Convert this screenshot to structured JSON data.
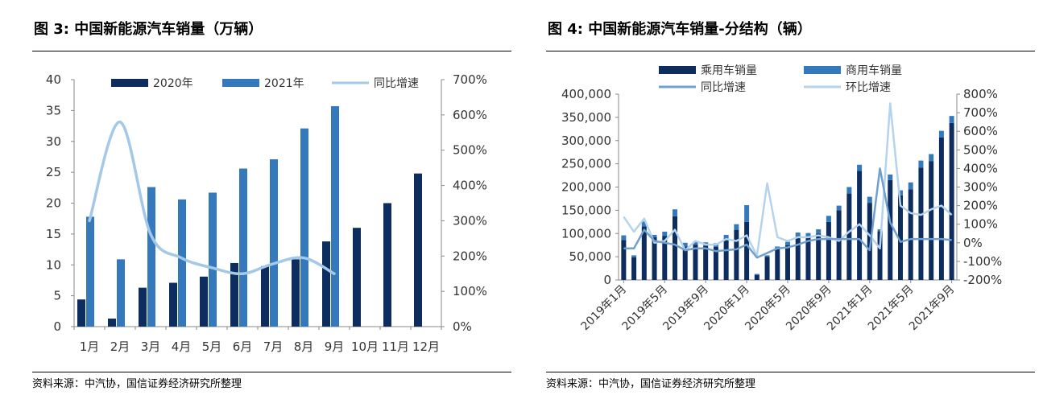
{
  "left": {
    "title": "图 3:  中国新能源汽车销量（万辆）",
    "source": "资料来源：中汽协，国信证券经济研究所整理",
    "chart_data": {
      "type": "bar",
      "categories": [
        "1月",
        "2月",
        "3月",
        "4月",
        "5月",
        "6月",
        "7月",
        "8月",
        "9月",
        "10月",
        "11月",
        "12月"
      ],
      "series": [
        {
          "name": "2020年",
          "type": "bar",
          "axis": "left",
          "color": "#0d2d5e",
          "values": [
            4.4,
            1.3,
            6.3,
            7.1,
            8.1,
            10.3,
            9.8,
            10.9,
            13.8,
            16.0,
            20.0,
            24.8
          ]
        },
        {
          "name": "2021年",
          "type": "bar",
          "axis": "left",
          "color": "#3579bd",
          "values": [
            17.8,
            10.9,
            22.6,
            20.6,
            21.7,
            25.6,
            27.1,
            32.1,
            35.7,
            null,
            null,
            null
          ]
        },
        {
          "name": "同比增速",
          "type": "line",
          "axis": "right",
          "color": "#a3c8e8",
          "values": [
            300,
            580,
            262,
            195,
            167,
            150,
            178,
            195,
            150,
            null,
            null,
            null
          ]
        }
      ],
      "yticks": [
        "0",
        "5",
        "10",
        "15",
        "20",
        "25",
        "30",
        "35",
        "40"
      ],
      "y2ticks": [
        "0%",
        "100%",
        "200%",
        "300%",
        "400%",
        "500%",
        "600%",
        "700%"
      ],
      "ylim": [
        0,
        40
      ],
      "y2lim": [
        0,
        700
      ],
      "legend_position": "top"
    }
  },
  "right": {
    "title": "图 4:  中国新能源汽车销量-分结构（辆）",
    "source": "资料来源：中汽协，国信证券经济研究所整理",
    "chart_data": {
      "type": "bar",
      "stacked": true,
      "x": [
        "2019年1月",
        "2019年2月",
        "2019年3月",
        "2019年4月",
        "2019年5月",
        "2019年6月",
        "2019年7月",
        "2019年8月",
        "2019年9月",
        "2019年10月",
        "2019年11月",
        "2019年12月",
        "2020年1月",
        "2020年2月",
        "2020年3月",
        "2020年4月",
        "2020年5月",
        "2020年6月",
        "2020年7月",
        "2020年8月",
        "2020年9月",
        "2020年10月",
        "2020年11月",
        "2020年12月",
        "2021年1月",
        "2021年2月",
        "2021年3月",
        "2021年4月",
        "2021年5月",
        "2021年6月",
        "2021年7月",
        "2021年8月",
        "2021年9月"
      ],
      "xticklabels": [
        "2019年1月",
        "2019年5月",
        "2019年9月",
        "2020年1月",
        "2020年5月",
        "2020年9月",
        "2021年1月",
        "2021年5月",
        "2021年9月"
      ],
      "series": [
        {
          "name": "乘用车销量",
          "type": "bar",
          "axis": "left",
          "color": "#0d2d5e",
          "values": [
            86000,
            49000,
            115000,
            92000,
            95000,
            137000,
            72000,
            76000,
            74000,
            71000,
            88000,
            108000,
            125000,
            11000,
            50000,
            68000,
            75000,
            90000,
            93000,
            100000,
            125000,
            150000,
            186000,
            235000,
            166000,
            105000,
            215000,
            182000,
            195000,
            242000,
            256000,
            307000,
            338000
          ]
        },
        {
          "name": "商用车销量",
          "type": "bar",
          "axis": "left",
          "color": "#3579bd",
          "values": [
            10000,
            4000,
            11000,
            5000,
            9000,
            15000,
            8000,
            7000,
            7000,
            8000,
            9000,
            12000,
            36000,
            2000,
            3000,
            4000,
            7000,
            12000,
            8000,
            9000,
            13000,
            10000,
            14000,
            13000,
            13000,
            4000,
            12000,
            11000,
            15000,
            15000,
            15000,
            14000,
            15000
          ]
        },
        {
          "name": "同比增速",
          "type": "line",
          "axis": "right",
          "color": "#6fa0cf",
          "values": [
            -30,
            -30,
            70,
            10,
            0,
            -10,
            -40,
            -30,
            -30,
            -45,
            -40,
            -35,
            -10,
            -80,
            -55,
            -30,
            -25,
            -10,
            10,
            20,
            20,
            20,
            20,
            20,
            -40,
            400,
            110,
            5,
            20,
            20,
            20,
            20,
            15
          ]
        },
        {
          "name": "环比增速",
          "type": "line",
          "axis": "right",
          "color": "#b5d3ec",
          "values": [
            140,
            60,
            130,
            0,
            10,
            70,
            -40,
            10,
            -10,
            -10,
            20,
            10,
            40,
            -70,
            320,
            30,
            10,
            30,
            30,
            40,
            30,
            10,
            60,
            100,
            40,
            -30,
            750,
            200,
            160,
            150,
            180,
            200,
            150
          ]
        }
      ],
      "yticks": [
        "0",
        "50,000",
        "100,000",
        "150,000",
        "200,000",
        "250,000",
        "300,000",
        "350,000",
        "400,000"
      ],
      "y2ticks": [
        "-200%",
        "-100%",
        "0%",
        "100%",
        "200%",
        "300%",
        "400%",
        "500%",
        "600%",
        "700%",
        "800%"
      ],
      "ylim": [
        0,
        400000
      ],
      "y2lim": [
        -200,
        800
      ],
      "legend_position": "top"
    }
  }
}
